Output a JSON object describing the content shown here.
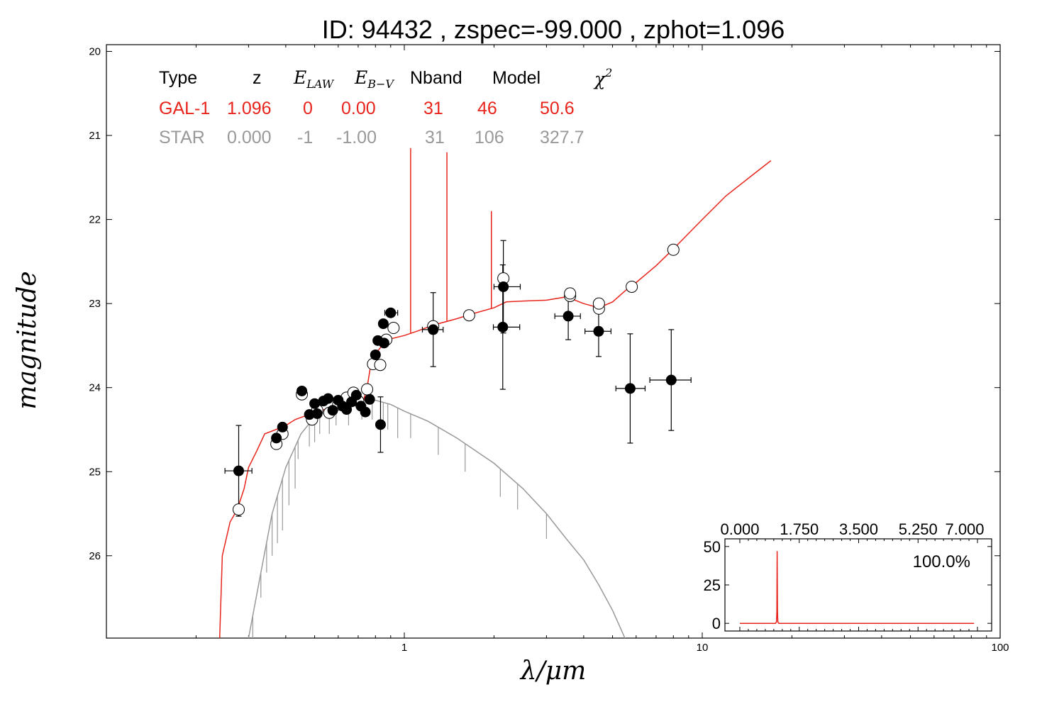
{
  "chart_data": [
    {
      "type": "scatter",
      "title": "ID:  94432 , zspec=-99.000 , zphot=1.096",
      "xlabel": "λ/μm",
      "ylabel": "magnitude",
      "xscale": "log",
      "xlim": [
        0.1,
        100
      ],
      "ylim": [
        26.98,
        19.92
      ],
      "x_tick_labels": [
        "1",
        "10",
        "100"
      ],
      "y_tick_labels": [
        "20",
        "21",
        "22",
        "23",
        "24",
        "25",
        "26"
      ],
      "table": {
        "headers": [
          "Type",
          "z",
          "E_LAW",
          "E_B-V",
          "Nband",
          "Model",
          "χ²"
        ],
        "header_display": {
          "type": "Type",
          "z": "z",
          "elaw_main": "E",
          "elaw_sub": "LAW",
          "ebv_main": "E",
          "ebv_sub": "B−V",
          "nband": "Nband",
          "model": "Model",
          "chi_main": "χ",
          "chi_sup": "2"
        },
        "rows": [
          {
            "type": "GAL-1",
            "z": "1.096",
            "elaw": "0",
            "ebv": "0.00",
            "nband": "31",
            "model": "46",
            "chi2": "50.6",
            "color": "#e8251c"
          },
          {
            "type": "STAR",
            "z": "0.000",
            "elaw": "-1",
            "ebv": "-1.00",
            "nband": "31",
            "model": "106",
            "chi2": "327.7",
            "color": "#999999"
          }
        ]
      },
      "series": [
        {
          "name": "GAL-1",
          "kind": "line",
          "color": "#e8251c",
          "points": [
            [
              0.24,
              27.0
            ],
            [
              0.245,
              26.0
            ],
            [
              0.26,
              25.6
            ],
            [
              0.275,
              25.45
            ],
            [
              0.29,
              25.2
            ],
            [
              0.3,
              24.95
            ],
            [
              0.32,
              24.75
            ],
            [
              0.34,
              24.55
            ],
            [
              0.37,
              24.5
            ],
            [
              0.4,
              24.45
            ],
            [
              0.43,
              24.38
            ],
            [
              0.47,
              24.33
            ],
            [
              0.5,
              24.3
            ],
            [
              0.55,
              24.25
            ],
            [
              0.6,
              24.22
            ],
            [
              0.65,
              24.2
            ],
            [
              0.7,
              24.18
            ],
            [
              0.73,
              24.15
            ],
            [
              0.75,
              24.0
            ],
            [
              0.77,
              23.75
            ],
            [
              0.8,
              23.6
            ],
            [
              0.85,
              23.48
            ],
            [
              0.9,
              23.42
            ],
            [
              1.0,
              23.38
            ],
            [
              1.1,
              23.33
            ],
            [
              1.2,
              23.28
            ],
            [
              1.3,
              23.24
            ],
            [
              1.5,
              23.18
            ],
            [
              1.7,
              23.12
            ],
            [
              2.0,
              23.05
            ],
            [
              2.2,
              22.98
            ],
            [
              2.5,
              22.97
            ],
            [
              3.0,
              22.96
            ],
            [
              3.5,
              22.92
            ],
            [
              4.0,
              23.0
            ],
            [
              4.5,
              23.05
            ],
            [
              5.0,
              22.98
            ],
            [
              5.5,
              22.85
            ],
            [
              6.0,
              22.75
            ],
            [
              7.0,
              22.55
            ],
            [
              8.0,
              22.35
            ],
            [
              10.0,
              22.0
            ],
            [
              12.0,
              21.72
            ],
            [
              15.0,
              21.45
            ],
            [
              17.0,
              21.3
            ]
          ],
          "emission_lines": [
            {
              "x": 1.05,
              "peak": 21.15
            },
            {
              "x": 1.39,
              "peak": 21.2
            },
            {
              "x": 1.96,
              "peak": 21.9
            }
          ]
        },
        {
          "name": "STAR",
          "kind": "line",
          "color": "#999999",
          "points": [
            [
              0.3,
              27.0
            ],
            [
              0.33,
              26.2
            ],
            [
              0.36,
              25.5
            ],
            [
              0.4,
              24.95
            ],
            [
              0.45,
              24.55
            ],
            [
              0.5,
              24.35
            ],
            [
              0.6,
              24.22
            ],
            [
              0.7,
              24.15
            ],
            [
              0.8,
              24.15
            ],
            [
              0.9,
              24.2
            ],
            [
              1.0,
              24.28
            ],
            [
              1.2,
              24.4
            ],
            [
              1.5,
              24.6
            ],
            [
              2.0,
              24.9
            ],
            [
              2.5,
              25.2
            ],
            [
              3.0,
              25.5
            ],
            [
              3.5,
              25.8
            ],
            [
              4.0,
              26.05
            ],
            [
              4.5,
              26.35
            ],
            [
              5.0,
              26.65
            ],
            [
              5.5,
              26.98
            ]
          ],
          "absorption_lines": [
            [
              0.31,
              27.0
            ],
            [
              0.33,
              26.5
            ],
            [
              0.345,
              26.2
            ],
            [
              0.36,
              26.0
            ],
            [
              0.375,
              25.85
            ],
            [
              0.39,
              25.7
            ],
            [
              0.41,
              25.4
            ],
            [
              0.43,
              25.2
            ],
            [
              0.44,
              24.85
            ],
            [
              0.48,
              24.7
            ],
            [
              0.5,
              24.65
            ],
            [
              0.52,
              24.55
            ],
            [
              0.56,
              24.55
            ],
            [
              0.59,
              24.45
            ],
            [
              0.65,
              24.45
            ],
            [
              0.72,
              24.38
            ],
            [
              0.78,
              24.38
            ],
            [
              0.85,
              24.45
            ],
            [
              0.88,
              24.5
            ],
            [
              0.95,
              24.6
            ],
            [
              1.05,
              24.6
            ],
            [
              1.3,
              24.8
            ],
            [
              1.6,
              25.0
            ],
            [
              2.1,
              25.3
            ],
            [
              2.4,
              25.45
            ],
            [
              3.0,
              25.8
            ]
          ]
        },
        {
          "name": "observed",
          "kind": "errorbar",
          "marker": "filled",
          "points": [
            {
              "x": 0.278,
              "y": 24.99,
              "xerr_lo": 0.028,
              "xerr_hi": 0.03,
              "yerr": 0.54
            },
            {
              "x": 0.372,
              "y": 24.6
            },
            {
              "x": 0.39,
              "y": 24.47
            },
            {
              "x": 0.453,
              "y": 24.04
            },
            {
              "x": 0.48,
              "y": 24.32
            },
            {
              "x": 0.5,
              "y": 24.19
            },
            {
              "x": 0.51,
              "y": 24.31
            },
            {
              "x": 0.535,
              "y": 24.16
            },
            {
              "x": 0.555,
              "y": 24.13
            },
            {
              "x": 0.575,
              "y": 24.27
            },
            {
              "x": 0.6,
              "y": 24.15
            },
            {
              "x": 0.62,
              "y": 24.22
            },
            {
              "x": 0.64,
              "y": 24.26
            },
            {
              "x": 0.665,
              "y": 24.17
            },
            {
              "x": 0.69,
              "y": 24.09
            },
            {
              "x": 0.715,
              "y": 24.22
            },
            {
              "x": 0.74,
              "y": 24.29
            },
            {
              "x": 0.765,
              "y": 24.14
            },
            {
              "x": 0.8,
              "y": 23.61
            },
            {
              "x": 0.815,
              "y": 23.44
            },
            {
              "x": 0.832,
              "y": 24.44,
              "yerr": 0.33
            },
            {
              "x": 0.85,
              "y": 23.24
            },
            {
              "x": 0.855,
              "y": 23.47
            },
            {
              "x": 0.9,
              "y": 23.11,
              "xerr_lo": 0.04,
              "xerr_hi": 0.05
            },
            {
              "x": 1.25,
              "y": 23.31,
              "xerr_lo": 0.1,
              "xerr_hi": 0.1,
              "yerr": 0.44
            },
            {
              "x": 2.14,
              "y": 23.28,
              "xerr_lo": 0.15,
              "xerr_hi": 0.3,
              "yerr": 0.74
            },
            {
              "x": 2.15,
              "y": 22.8,
              "xerr_lo": 0.15,
              "xerr_hi": 0.3,
              "yerr": 0.55
            },
            {
              "x": 3.55,
              "y": 23.15,
              "xerr_lo": 0.35,
              "xerr_hi": 0.35,
              "yerr": 0.28
            },
            {
              "x": 4.49,
              "y": 23.33,
              "xerr_lo": 0.45,
              "xerr_hi": 0.45,
              "yerr": 0.3
            },
            {
              "x": 5.73,
              "y": 24.01,
              "xerr_lo": 0.6,
              "xerr_hi": 0.7,
              "yerr": 0.65
            },
            {
              "x": 7.87,
              "y": 23.91,
              "xerr_lo": 1.2,
              "xerr_hi": 1.3,
              "yerr": 0.6
            }
          ]
        },
        {
          "name": "model",
          "kind": "scatter",
          "marker": "open",
          "points": [
            {
              "x": 0.278,
              "y": 25.45
            },
            {
              "x": 0.372,
              "y": 24.67
            },
            {
              "x": 0.39,
              "y": 24.55
            },
            {
              "x": 0.453,
              "y": 24.08
            },
            {
              "x": 0.49,
              "y": 24.38
            },
            {
              "x": 0.51,
              "y": 24.27
            },
            {
              "x": 0.56,
              "y": 24.3
            },
            {
              "x": 0.6,
              "y": 24.2
            },
            {
              "x": 0.64,
              "y": 24.12
            },
            {
              "x": 0.675,
              "y": 24.06
            },
            {
              "x": 0.7,
              "y": 24.16
            },
            {
              "x": 0.75,
              "y": 24.02
            },
            {
              "x": 0.785,
              "y": 23.72
            },
            {
              "x": 0.83,
              "y": 23.73
            },
            {
              "x": 0.87,
              "y": 23.43
            },
            {
              "x": 0.92,
              "y": 23.29
            },
            {
              "x": 1.25,
              "y": 23.27
            },
            {
              "x": 1.65,
              "y": 23.14
            },
            {
              "x": 2.15,
              "y": 22.7
            },
            {
              "x": 3.6,
              "y": 22.91
            },
            {
              "x": 3.6,
              "y": 22.88
            },
            {
              "x": 4.5,
              "y": 23.06
            },
            {
              "x": 4.5,
              "y": 23.0
            },
            {
              "x": 5.8,
              "y": 22.8
            },
            {
              "x": 8.0,
              "y": 22.36
            }
          ]
        }
      ]
    },
    {
      "type": "line",
      "title": "",
      "annotation": "100.0%",
      "xlim": [
        0,
        7
      ],
      "ylim": [
        -5,
        55
      ],
      "x_tick_labels": [
        "0.000",
        "1.750",
        "3.500",
        "5.250",
        "7.000"
      ],
      "y_tick_labels": [
        "0",
        "25",
        "50"
      ],
      "series": [
        {
          "color": "#e8251c",
          "x": [
            0.0,
            1.05,
            1.08,
            1.09,
            1.1,
            1.11,
            1.12,
            1.15,
            6.9
          ],
          "y": [
            0,
            0,
            1,
            8,
            47,
            8,
            1,
            0,
            0
          ]
        }
      ]
    }
  ]
}
